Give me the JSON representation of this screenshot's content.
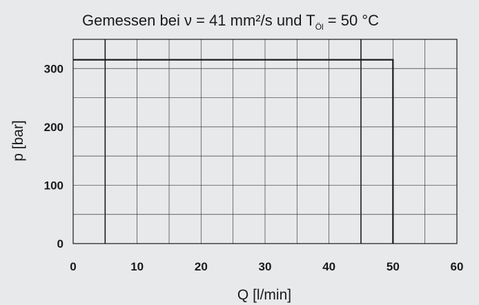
{
  "chart_data": {
    "type": "line",
    "title_prefix": "Gemessen bei ν = 41 mm²/s und T",
    "title_subscript": "Öl",
    "title_suffix": " = 50 °C",
    "xlabel": "Q [l/min]",
    "ylabel": "p [bar]",
    "xlim": [
      0,
      60
    ],
    "ylim": [
      0,
      350
    ],
    "xticks": [
      0,
      10,
      20,
      30,
      40,
      50,
      60
    ],
    "yticks": [
      0,
      100,
      200,
      300
    ],
    "x_gridlines": [
      5,
      10,
      15,
      20,
      25,
      30,
      35,
      40,
      45,
      50,
      55
    ],
    "y_gridlines": [
      50,
      100,
      150,
      200,
      250,
      300
    ],
    "emphasized_x_gridlines": [
      5,
      45
    ],
    "grid": true,
    "legend": "none",
    "series": [
      {
        "x": [
          0,
          50,
          50
        ],
        "y": [
          315,
          315,
          0
        ]
      }
    ],
    "colors": {
      "background": "#e8e9eb",
      "grid": "#2a2a2a",
      "line": "#1a1a1a"
    }
  }
}
